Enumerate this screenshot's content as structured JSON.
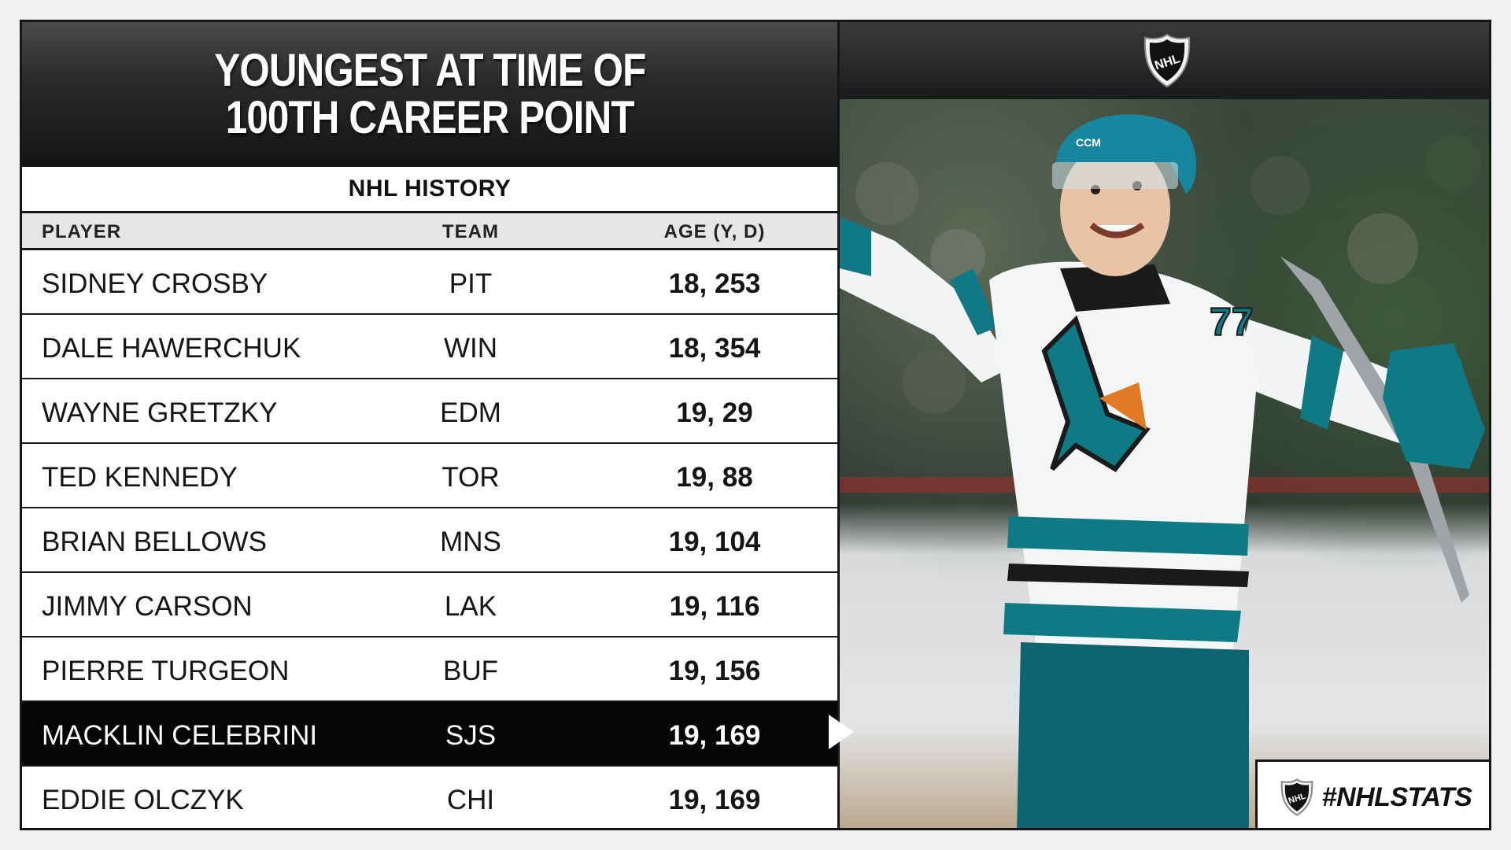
{
  "title": {
    "line1": "YOUNGEST AT TIME OF",
    "line2": "100TH CAREER POINT"
  },
  "subtitle": "NHL HISTORY",
  "columns": {
    "player": "PLAYER",
    "team": "TEAM",
    "age": "AGE (Y, D)"
  },
  "rows": [
    {
      "player": "SIDNEY CROSBY",
      "team": "PIT",
      "age": "18, 253",
      "highlight": false
    },
    {
      "player": "DALE HAWERCHUK",
      "team": "WIN",
      "age": "18, 354",
      "highlight": false
    },
    {
      "player": "WAYNE GRETZKY",
      "team": "EDM",
      "age": "19, 29",
      "highlight": false
    },
    {
      "player": "TED KENNEDY",
      "team": "TOR",
      "age": "19, 88",
      "highlight": false
    },
    {
      "player": "BRIAN BELLOWS",
      "team": "MNS",
      "age": "19, 104",
      "highlight": false
    },
    {
      "player": "JIMMY CARSON",
      "team": "LAK",
      "age": "19, 116",
      "highlight": false
    },
    {
      "player": "PIERRE TURGEON",
      "team": "BUF",
      "age": "19, 156",
      "highlight": false
    },
    {
      "player": "MACKLIN CELEBRINI",
      "team": "SJS",
      "age": "19, 169",
      "highlight": true
    },
    {
      "player": "EDDIE OLCZYK",
      "team": "CHI",
      "age": "19, 169",
      "highlight": false
    }
  ],
  "logo": {
    "text": "NHL",
    "icon": "nhl-shield-icon"
  },
  "photo": {
    "jersey_number": "77",
    "description": "player-celebration-photo"
  },
  "hashtag": "#NHLSTATS",
  "colors": {
    "teal": "#0f7a86",
    "dark": "#141414",
    "highlight": "#050505"
  }
}
